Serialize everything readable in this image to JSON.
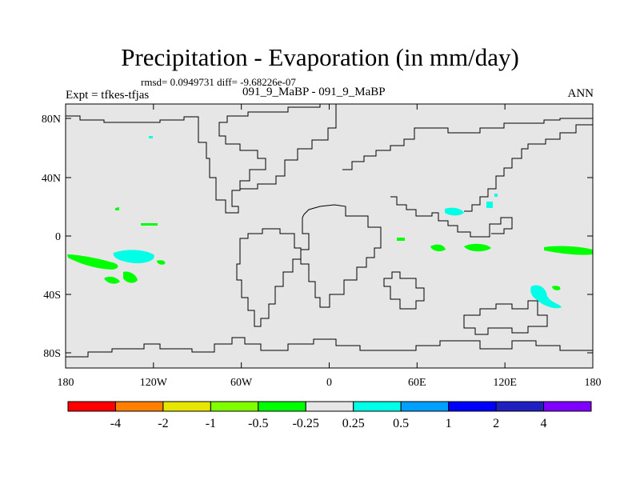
{
  "map": {
    "title": "Precipitation - Evaporation (in mm/day)",
    "stats": "rmsd= 0.0949731 diff= -9.68226e-07",
    "expt": "Expt = tfkes-tfjas",
    "subtitle": "091_9_MaBP - 091_9_MaBP",
    "season": "ANN",
    "x_ticks": [
      "180",
      "120W",
      "60W",
      "0",
      "60E",
      "120E",
      "180"
    ],
    "y_ticks": [
      "80N",
      "40N",
      "0",
      "40S",
      "80S"
    ],
    "background_color": "#e6e6e6"
  },
  "colorbar": {
    "colors": [
      "#ff0000",
      "#ff8000",
      "#e6e600",
      "#80ff00",
      "#00ff00",
      "#e6e6e6",
      "#00ffe6",
      "#00a0ff",
      "#0000ff",
      "#2020c0",
      "#8000ff"
    ],
    "labels": [
      "-4",
      "-2",
      "-1",
      "-0.5",
      "-0.25",
      "0.25",
      "0.5",
      "1",
      "2",
      "4"
    ]
  }
}
